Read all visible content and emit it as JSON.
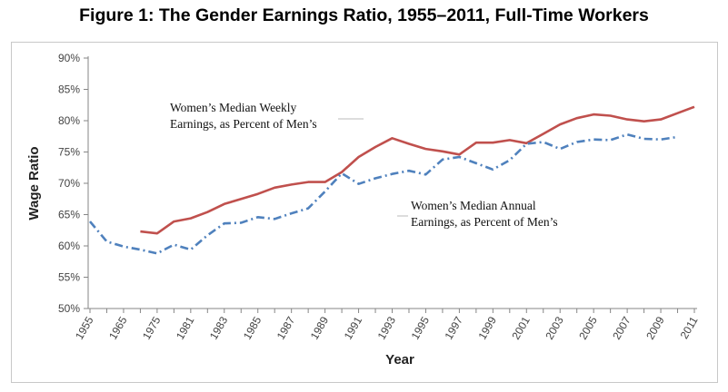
{
  "chart_data": {
    "type": "line",
    "title": "Figure 1: The Gender Earnings Ratio, 1955–2011, Full-Time Workers",
    "xlabel": "Year",
    "ylabel": "Wage Ratio",
    "ylim": [
      50,
      90
    ],
    "yticks": [
      "50%",
      "55%",
      "60%",
      "65%",
      "70%",
      "75%",
      "80%",
      "85%",
      "90%"
    ],
    "xticks": [
      "1955",
      "1965",
      "1975",
      "1981",
      "1983",
      "1985",
      "1987",
      "1989",
      "1991",
      "1993",
      "1995",
      "1997",
      "1999",
      "2001",
      "2003",
      "2005",
      "2007",
      "2009",
      "2011"
    ],
    "x": [
      "1955",
      "1960",
      "1965",
      "1970",
      "1975",
      "1979",
      "1981",
      "1982",
      "1983",
      "1984",
      "1985",
      "1986",
      "1987",
      "1988",
      "1989",
      "1990",
      "1991",
      "1992",
      "1993",
      "1994",
      "1995",
      "1996",
      "1997",
      "1998",
      "1999",
      "2000",
      "2001",
      "2002",
      "2003",
      "2004",
      "2005",
      "2006",
      "2007",
      "2008",
      "2009",
      "2010",
      "2011"
    ],
    "grid": false,
    "series": [
      {
        "name": "Women’s Median Weekly Earnings, as Percent of Men’s",
        "color": "#c0504d",
        "style": "solid",
        "values": [
          null,
          null,
          null,
          62.3,
          62.0,
          63.9,
          64.4,
          65.4,
          66.7,
          67.5,
          68.3,
          69.3,
          69.8,
          70.2,
          70.2,
          71.8,
          74.2,
          75.8,
          77.2,
          76.3,
          75.5,
          75.1,
          74.6,
          76.5,
          76.5,
          76.9,
          76.4,
          77.9,
          79.4,
          80.4,
          81.0,
          80.8,
          80.2,
          79.9,
          80.2,
          81.2,
          82.2
        ]
      },
      {
        "name": "Women’s Median Annual Earnings, as Percent of Men’s",
        "color": "#4f81bd",
        "style": "dash-dot",
        "values": [
          63.9,
          60.7,
          59.9,
          59.4,
          58.8,
          60.2,
          59.4,
          61.7,
          63.6,
          63.7,
          64.6,
          64.3,
          65.2,
          66.0,
          68.7,
          71.6,
          69.9,
          70.8,
          71.5,
          72.0,
          71.4,
          73.8,
          74.2,
          73.2,
          72.2,
          73.7,
          76.3,
          76.6,
          75.5,
          76.6,
          77.0,
          76.9,
          77.8,
          77.1,
          77.0,
          77.4,
          null
        ]
      }
    ],
    "annotations": [
      {
        "lines": [
          "Women’s Median Weekly",
          "Earnings, as Percent of Men’s"
        ]
      },
      {
        "lines": [
          "Women’s Median Annual",
          "Earnings, as Percent of Men’s"
        ]
      }
    ]
  }
}
